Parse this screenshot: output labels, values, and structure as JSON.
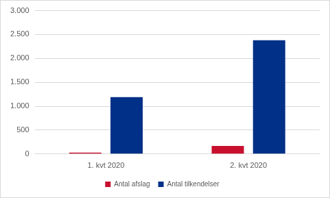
{
  "chart_data": {
    "type": "bar",
    "categories": [
      "1. kvt 2020",
      "2. kvt 2020"
    ],
    "series": [
      {
        "name": "Antal afslag",
        "color": "#c8102e",
        "values": [
          30,
          170
        ]
      },
      {
        "name": "Antal tilkendelser",
        "color": "#003087",
        "values": [
          1190,
          2380
        ]
      }
    ],
    "ylim": [
      0,
      3000
    ],
    "yticks": [
      0,
      500,
      {
        "value": 1000,
        "label": "1.000"
      },
      {
        "value": 1500,
        "label": "1.500"
      },
      {
        "value": 2000,
        "label": "2.000"
      },
      {
        "value": 2500,
        "label": "2.500"
      },
      {
        "value": 3000,
        "label": "3.000"
      }
    ],
    "grid": true,
    "legend": "bottom"
  }
}
